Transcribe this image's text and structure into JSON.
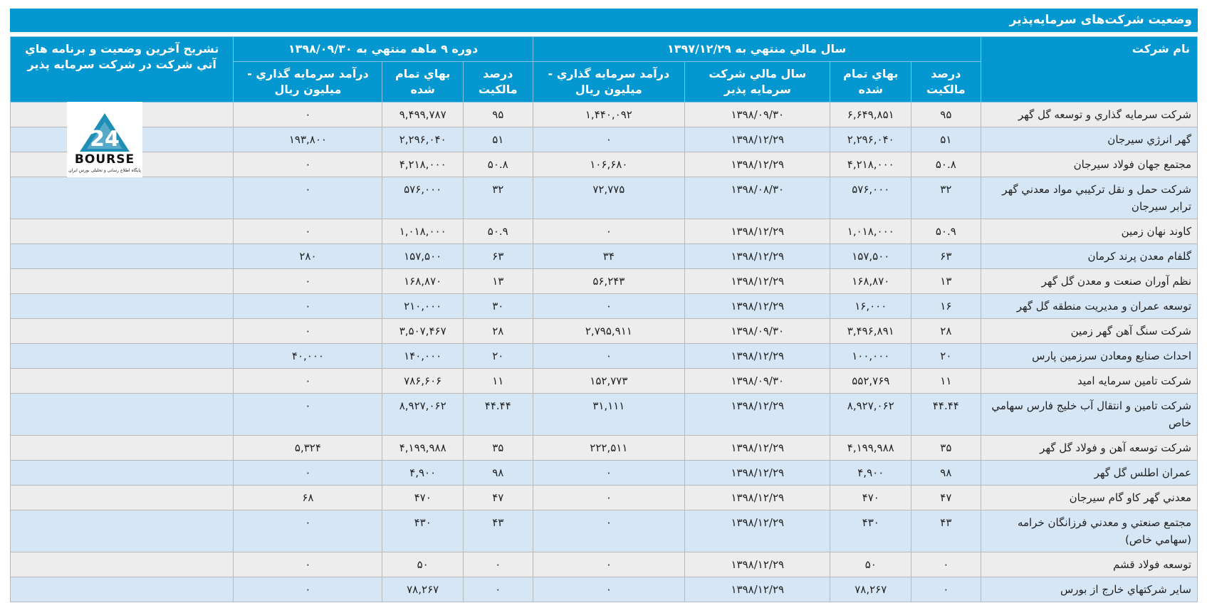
{
  "title": "وضعیت شرکت‌های سرمایه‌پذیر",
  "headers": {
    "company": "نام شرکت",
    "fiscal_group": "سال مالي منتهي به ۱۳۹۷/۱۲/۲۹",
    "nine_month_group": "دوره ۹ ماهه منتهي به ۱۳۹۸/۰۹/۳۰",
    "explanation": "تشريح آخرين وضعيت و برنامه هاي آتي شرکت در شرکت سرمايه پذير",
    "ownership": "درصد مالكيت",
    "cost": "بهاي تمام شده",
    "fiscal_year": "سال مالي شركت سرمايه پذير",
    "income": "درآمد سرمايه گذاري - ميليون ريال"
  },
  "logo": {
    "text": "BOURSE",
    "number": "24",
    "caption": "پایگاه اطلاع رسانی و تحلیلی بورس ایران"
  },
  "rows": [
    {
      "name": "شركت سرمايه گذاري و توسعه گل گهر",
      "own1": "۹۵",
      "cost1": "۶,۶۴۹,۸۵۱",
      "fy": "۱۳۹۸/۰۹/۳۰",
      "inc1": "۱,۴۴۰,۰۹۲",
      "own2": "۹۵",
      "cost2": "۹,۴۹۹,۷۸۷",
      "inc2": "۰",
      "tall": false
    },
    {
      "name": "گهر انرژي سيرجان",
      "own1": "۵۱",
      "cost1": "۲,۲۹۶,۰۴۰",
      "fy": "۱۳۹۸/۱۲/۲۹",
      "inc1": "۰",
      "own2": "۵۱",
      "cost2": "۲,۲۹۶,۰۴۰",
      "inc2": "۱۹۳,۸۰۰",
      "tall": false
    },
    {
      "name": "مجتمع جهان فولاد سيرجان",
      "own1": "۵۰.۸",
      "cost1": "۴,۲۱۸,۰۰۰",
      "fy": "۱۳۹۸/۱۲/۲۹",
      "inc1": "۱۰۶,۶۸۰",
      "own2": "۵۰.۸",
      "cost2": "۴,۲۱۸,۰۰۰",
      "inc2": "۰",
      "tall": false
    },
    {
      "name": "شركت حمل و نقل تركيبي مواد معدني گهر ترابر سيرجان",
      "own1": "۳۲",
      "cost1": "۵۷۶,۰۰۰",
      "fy": "۱۳۹۸/۰۸/۳۰",
      "inc1": "۷۲,۷۷۵",
      "own2": "۳۲",
      "cost2": "۵۷۶,۰۰۰",
      "inc2": "۰",
      "tall": true
    },
    {
      "name": "کاوند نهان زمين",
      "own1": "۵۰.۹",
      "cost1": "۱,۰۱۸,۰۰۰",
      "fy": "۱۳۹۸/۱۲/۲۹",
      "inc1": "۰",
      "own2": "۵۰.۹",
      "cost2": "۱,۰۱۸,۰۰۰",
      "inc2": "۰",
      "tall": false
    },
    {
      "name": "گلفام معدن پرند كرمان",
      "own1": "۶۳",
      "cost1": "۱۵۷,۵۰۰",
      "fy": "۱۳۹۸/۱۲/۲۹",
      "inc1": "۳۴",
      "own2": "۶۳",
      "cost2": "۱۵۷,۵۰۰",
      "inc2": "۲۸۰",
      "tall": false
    },
    {
      "name": "نظم آوران صنعت و معدن گل گهر",
      "own1": "۱۳",
      "cost1": "۱۶۸,۸۷۰",
      "fy": "۱۳۹۸/۱۲/۲۹",
      "inc1": "۵۶,۲۴۳",
      "own2": "۱۳",
      "cost2": "۱۶۸,۸۷۰",
      "inc2": "۰",
      "tall": false
    },
    {
      "name": "توسعه عمران و مديريت منطقه گل گهر",
      "own1": "۱۶",
      "cost1": "۱۶,۰۰۰",
      "fy": "۱۳۹۸/۱۲/۲۹",
      "inc1": "۰",
      "own2": "۳۰",
      "cost2": "۲۱۰,۰۰۰",
      "inc2": "۰",
      "tall": false
    },
    {
      "name": "شركت سنگ آهن گهر زمين",
      "own1": "۲۸",
      "cost1": "۳,۴۹۶,۸۹۱",
      "fy": "۱۳۹۸/۰۹/۳۰",
      "inc1": "۲,۷۹۵,۹۱۱",
      "own2": "۲۸",
      "cost2": "۳,۵۰۷,۴۶۷",
      "inc2": "۰",
      "tall": false
    },
    {
      "name": "احداث صنايع ومعادن سرزمين پارس",
      "own1": "۲۰",
      "cost1": "۱۰۰,۰۰۰",
      "fy": "۱۳۹۸/۱۲/۲۹",
      "inc1": "۰",
      "own2": "۲۰",
      "cost2": "۱۴۰,۰۰۰",
      "inc2": "۴۰,۰۰۰",
      "tall": false
    },
    {
      "name": "شركت تامين سرمايه اميد",
      "own1": "۱۱",
      "cost1": "۵۵۲,۷۶۹",
      "fy": "۱۳۹۸/۰۹/۳۰",
      "inc1": "۱۵۲,۷۷۳",
      "own2": "۱۱",
      "cost2": "۷۸۶,۶۰۶",
      "inc2": "۰",
      "tall": false
    },
    {
      "name": "شركت تامين و انتقال آب خليج فارس سهامي خاص",
      "own1": "۴۴.۴۴",
      "cost1": "۸,۹۲۷,۰۶۲",
      "fy": "۱۳۹۸/۱۲/۲۹",
      "inc1": "۳۱,۱۱۱",
      "own2": "۴۴.۴۴",
      "cost2": "۸,۹۲۷,۰۶۲",
      "inc2": "۰",
      "tall": true
    },
    {
      "name": "شركت توسعه آهن و فولاد گل گهر",
      "own1": "۳۵",
      "cost1": "۴,۱۹۹,۹۸۸",
      "fy": "۱۳۹۸/۱۲/۲۹",
      "inc1": "۲۲۲,۵۱۱",
      "own2": "۳۵",
      "cost2": "۴,۱۹۹,۹۸۸",
      "inc2": "۵,۳۲۴",
      "tall": false
    },
    {
      "name": "عمران اطلس گل گهر",
      "own1": "۹۸",
      "cost1": "۴,۹۰۰",
      "fy": "۱۳۹۸/۱۲/۲۹",
      "inc1": "۰",
      "own2": "۹۸",
      "cost2": "۴,۹۰۰",
      "inc2": "۰",
      "tall": false
    },
    {
      "name": "معدني گهر كاو گام سيرجان",
      "own1": "۴۷",
      "cost1": "۴۷۰",
      "fy": "۱۳۹۸/۱۲/۲۹",
      "inc1": "۰",
      "own2": "۴۷",
      "cost2": "۴۷۰",
      "inc2": "۶۸",
      "tall": false
    },
    {
      "name": "مجتمع صنعتي و معدني فرزانگان خرامه (سهامي خاص)",
      "own1": "۴۳",
      "cost1": "۴۳۰",
      "fy": "۱۳۹۸/۱۲/۲۹",
      "inc1": "۰",
      "own2": "۴۳",
      "cost2": "۴۳۰",
      "inc2": "۰",
      "tall": true
    },
    {
      "name": "توسعه فولاد قشم",
      "own1": "۰",
      "cost1": "۵۰",
      "fy": "۱۳۹۸/۱۲/۲۹",
      "inc1": "۰",
      "own2": "۰",
      "cost2": "۵۰",
      "inc2": "۰",
      "tall": false
    },
    {
      "name": "ساير شركتهاي خارج از بورس",
      "own1": "۰",
      "cost1": "۷۸,۲۶۷",
      "fy": "۱۳۹۸/۱۲/۲۹",
      "inc1": "۰",
      "own2": "۰",
      "cost2": "۷۸,۲۶۷",
      "inc2": "۰",
      "tall": false
    }
  ]
}
